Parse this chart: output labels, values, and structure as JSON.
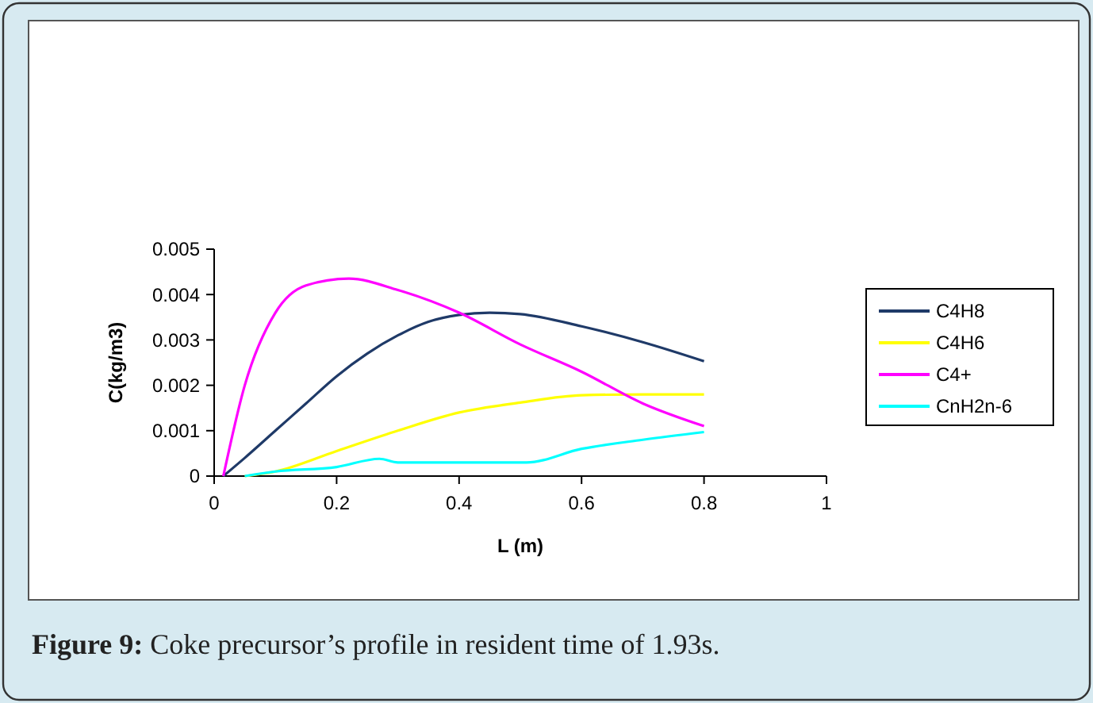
{
  "chart_data": {
    "type": "line",
    "xlabel": "L (m)",
    "ylabel": "C(kg/m3)",
    "xlim": [
      0,
      1
    ],
    "xticks": [
      0,
      0.2,
      0.4,
      0.6,
      0.8,
      1
    ],
    "ylim": [
      0,
      0.005
    ],
    "yticks": [
      0,
      0.001,
      0.002,
      0.003,
      0.004,
      0.005
    ],
    "grid": false,
    "legend": "right",
    "marker": "none",
    "line_style": "solid",
    "annotations": [
      "Figure 9: Coke precursor’s profile in resident time of 1.93s."
    ],
    "series": [
      {
        "name": "C4H8",
        "color": "#1f3a68",
        "x": [
          0.015,
          0.05,
          0.1,
          0.15,
          0.2,
          0.25,
          0.3,
          0.35,
          0.4,
          0.45,
          0.5,
          0.6,
          0.7,
          0.8
        ],
        "values": [
          0,
          0.0004,
          0.001,
          0.0016,
          0.0022,
          0.0027,
          0.0031,
          0.0034,
          0.00355,
          0.0036,
          0.00357,
          0.0033,
          0.00295,
          0.00253
        ]
      },
      {
        "name": "C4H6",
        "color": "#ffff00",
        "x": [
          0.05,
          0.1,
          0.2,
          0.3,
          0.4,
          0.5,
          0.6,
          0.7,
          0.8
        ],
        "values": [
          0,
          0.0001,
          0.00055,
          0.001,
          0.0014,
          0.00162,
          0.00178,
          0.0018,
          0.0018
        ]
      },
      {
        "name": "C4+",
        "color": "#ff00ff",
        "x": [
          0.015,
          0.05,
          0.1,
          0.15,
          0.22,
          0.3,
          0.4,
          0.5,
          0.6,
          0.7,
          0.8
        ],
        "values": [
          0,
          0.002,
          0.0036,
          0.0042,
          0.00435,
          0.0041,
          0.0036,
          0.0029,
          0.0023,
          0.0016,
          0.0011
        ]
      },
      {
        "name": "CnH2n-6",
        "color": "#00ffff",
        "x": [
          0.05,
          0.1,
          0.2,
          0.27,
          0.3,
          0.4,
          0.51,
          0.6,
          0.7,
          0.8
        ],
        "values": [
          0,
          0.0001,
          0.0002,
          0.00038,
          0.0003,
          0.0003,
          0.0003,
          0.0006,
          0.0008,
          0.00097
        ]
      }
    ]
  }
}
